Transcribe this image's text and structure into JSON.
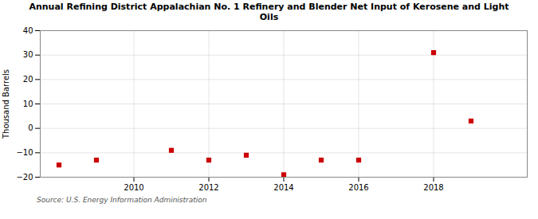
{
  "chart_data": {
    "type": "scatter",
    "title": "Annual Refining District Appalachian No. 1 Refinery and Blender Net Input of Kerosene and Light\nOils",
    "ylabel": "Thousand Barrels",
    "source": "Source: U.S. Energy Information Administration",
    "x": [
      2008,
      2009,
      2011,
      2012,
      2013,
      2014,
      2015,
      2016,
      2018,
      2019
    ],
    "values": [
      -15,
      -13,
      -9,
      -13,
      -11,
      -19,
      -13,
      -13,
      31,
      3
    ],
    "color": "#cc0000",
    "marker": "square",
    "xlim": [
      2007.5,
      2020.5
    ],
    "ylim": [
      -20,
      40
    ],
    "xticks": [
      2010,
      2012,
      2014,
      2016,
      2018
    ],
    "yticks": [
      -20,
      -10,
      0,
      10,
      20,
      30,
      40
    ],
    "grid": true
  }
}
